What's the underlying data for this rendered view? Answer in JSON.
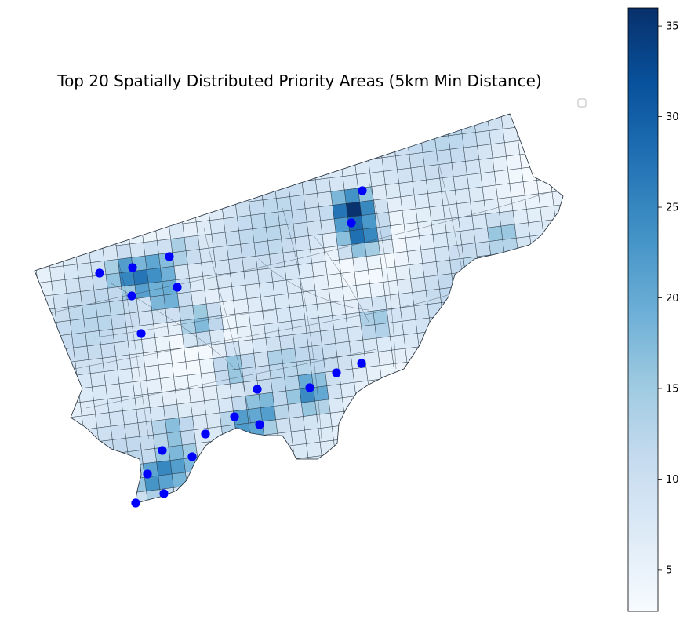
{
  "chart_data": {
    "type": "map",
    "title": "Top 20 Spatially Distributed Priority Areas (5km Min Distance)",
    "colormap": "Blues",
    "colorbar": {
      "min": 2.7,
      "max": 36,
      "ticks": [
        5,
        10,
        15,
        20,
        25,
        30,
        35
      ]
    },
    "legend": {
      "placement": "upper-right",
      "entries": []
    },
    "points_color": "#0000ff",
    "points_count": 20,
    "grid_values_sample": [
      3,
      4,
      6,
      8,
      9,
      11,
      12,
      14,
      16,
      18,
      20,
      22,
      25,
      28,
      36
    ]
  }
}
